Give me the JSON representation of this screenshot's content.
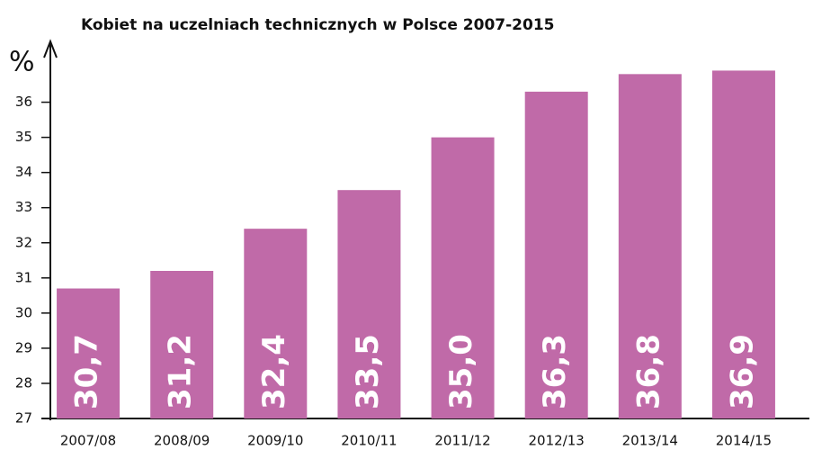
{
  "chart_data": {
    "type": "bar",
    "title": "Kobiet na uczelniach technicznych w Polsce 2007-2015",
    "y_label": "%",
    "categories": [
      "2007/08",
      "2008/09",
      "2009/10",
      "2010/11",
      "2011/12",
      "2012/13",
      "2013/14",
      "2014/15"
    ],
    "values": [
      30.7,
      31.2,
      32.4,
      33.5,
      35.0,
      36.3,
      36.8,
      36.9
    ],
    "value_labels": [
      "30,7",
      "31,2",
      "32,4",
      "33,5",
      "35,0",
      "36,3",
      "36,8",
      "36,9"
    ],
    "color": "#c06aa8",
    "ylim": [
      27,
      37.5
    ],
    "yticks": [
      27,
      28,
      29,
      30,
      31,
      32,
      33,
      34,
      35,
      36
    ],
    "grid": false
  }
}
